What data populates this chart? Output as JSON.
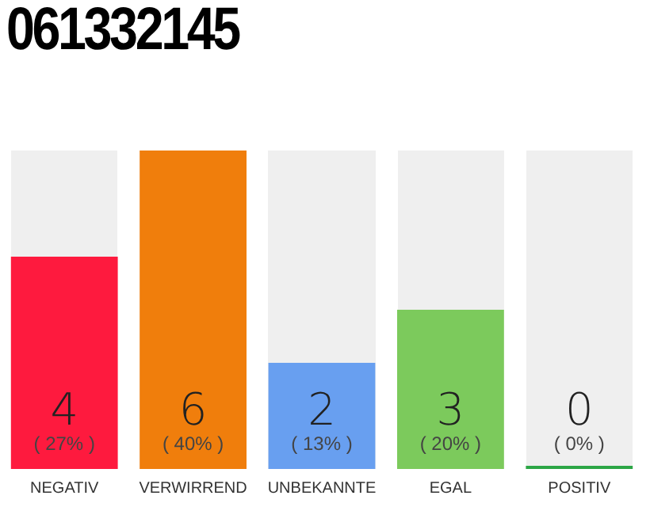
{
  "chart_data": {
    "type": "bar",
    "title": "061332145",
    "categories": [
      "NEGATIV",
      "VERWIRREND",
      "UNBEKANNTE",
      "EGAL",
      "POSITIV"
    ],
    "values": [
      4,
      6,
      2,
      3,
      0
    ],
    "colors": [
      "#fe1a3e",
      "#f07e0c",
      "#689ff0",
      "#7cca5c",
      "#2ca646"
    ],
    "data_labels": true,
    "annotations": [
      "( 27% )",
      "( 40% )",
      "( 13% )",
      "( 20% )",
      "( 0% )"
    ],
    "grid": false,
    "legend": false
  }
}
